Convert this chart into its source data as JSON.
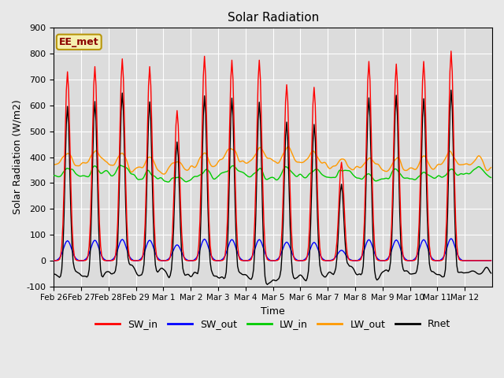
{
  "title": "Solar Radiation",
  "xlabel": "Time",
  "ylabel": "Solar Radiation (W/m2)",
  "ylim": [
    -100,
    900
  ],
  "xlim": [
    0,
    384
  ],
  "background_color": "#dcdcdc",
  "fig_color": "#e8e8e8",
  "annotation_text": "EE_met",
  "annotation_color": "#8b0000",
  "annotation_bg": "#f5f0b0",
  "annotation_edge": "#b8960c",
  "series_colors": {
    "SW_in": "#ff0000",
    "SW_out": "#0000ff",
    "LW_in": "#00cc00",
    "LW_out": "#ff9900",
    "Rnet": "#000000"
  },
  "xtick_labels": [
    "Feb 26",
    "Feb 27",
    "Feb 28",
    "Feb 29",
    "Mar 1",
    "Mar 2",
    "Mar 3",
    "Mar 4",
    "Mar 5",
    "Mar 6",
    "Mar 7",
    "Mar 8",
    "Mar 9",
    "Mar 10",
    "Mar 11",
    "Mar 12"
  ],
  "xtick_positions": [
    0,
    24,
    48,
    72,
    96,
    120,
    144,
    168,
    192,
    216,
    240,
    264,
    288,
    312,
    336,
    360
  ],
  "n_hours": 384,
  "figsize": [
    6.4,
    4.8
  ],
  "dpi": 100,
  "sw_peaks": [
    730,
    750,
    780,
    750,
    580,
    790,
    775,
    775,
    680,
    670,
    380,
    770,
    760,
    770,
    810,
    0
  ],
  "sw_out_scale": 0.105,
  "night_rnet": -55,
  "lw_in_base": 330,
  "lw_out_base": 350
}
